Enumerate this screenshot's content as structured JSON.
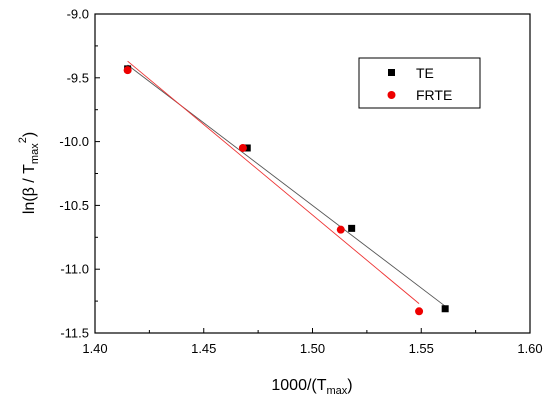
{
  "chart_data": {
    "type": "scatter",
    "xlabel": {
      "main": "1000/(T",
      "sub": "max",
      "close": ")"
    },
    "ylabel": {
      "pre": "ln(β / T",
      "sub": "max",
      "sup": "2",
      "close": ")"
    },
    "xlim": [
      1.4,
      1.6
    ],
    "ylim": [
      -11.5,
      -9.0
    ],
    "xticks": [
      "1.40",
      "1.45",
      "1.50",
      "1.55",
      "1.60"
    ],
    "yticks": [
      "-9.0",
      "-9.5",
      "-10.0",
      "-10.5",
      "-11.0",
      "-11.5"
    ],
    "legend_position": "top-right",
    "series": [
      {
        "name": "TE",
        "marker": "square",
        "color": "#000000",
        "fit_color": "#555555",
        "x": [
          1.415,
          1.47,
          1.518,
          1.561
        ],
        "y": [
          -9.43,
          -10.05,
          -10.68,
          -11.31
        ],
        "fit": [
          [
            1.415,
            -9.4
          ],
          [
            1.561,
            -11.29
          ]
        ]
      },
      {
        "name": "FRTE",
        "marker": "circle",
        "color": "#ee0000",
        "fit_color": "#ee3333",
        "x": [
          1.415,
          1.468,
          1.513,
          1.549
        ],
        "y": [
          -9.44,
          -10.05,
          -10.69,
          -11.33
        ],
        "fit": [
          [
            1.415,
            -9.37
          ],
          [
            1.549,
            -11.27
          ]
        ]
      }
    ]
  }
}
